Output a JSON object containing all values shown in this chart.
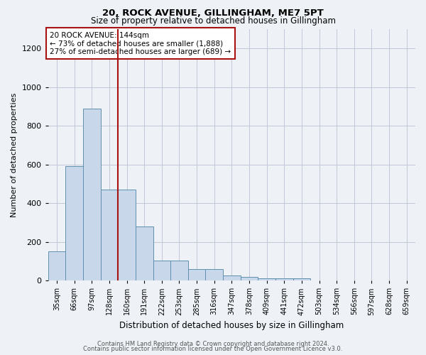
{
  "title": "20, ROCK AVENUE, GILLINGHAM, ME7 5PT",
  "subtitle": "Size of property relative to detached houses in Gillingham",
  "xlabel": "Distribution of detached houses by size in Gillingham",
  "ylabel": "Number of detached properties",
  "footer_line1": "Contains HM Land Registry data © Crown copyright and database right 2024.",
  "footer_line2": "Contains public sector information licensed under the Open Government Licence v3.0.",
  "annotation_line1": "20 ROCK AVENUE: 144sqm",
  "annotation_line2": "← 73% of detached houses are smaller (1,888)",
  "annotation_line3": "27% of semi-detached houses are larger (689) →",
  "bar_color": "#c8d8ea",
  "bar_edge_color": "#6090b0",
  "highlight_color": "#aa1111",
  "background_color": "#eef2f7",
  "bin_labels": [
    "35sqm",
    "66sqm",
    "97sqm",
    "128sqm",
    "160sqm",
    "191sqm",
    "222sqm",
    "253sqm",
    "285sqm",
    "316sqm",
    "347sqm",
    "378sqm",
    "409sqm",
    "441sqm",
    "472sqm",
    "503sqm",
    "534sqm",
    "566sqm",
    "597sqm",
    "628sqm",
    "659sqm"
  ],
  "values": [
    150,
    590,
    890,
    470,
    470,
    280,
    105,
    105,
    60,
    60,
    27,
    18,
    13,
    11,
    11,
    0,
    0,
    0,
    0,
    0
  ],
  "red_line_x": 3.5,
  "ylim": [
    0,
    1300
  ],
  "yticks": [
    0,
    200,
    400,
    600,
    800,
    1000,
    1200
  ]
}
